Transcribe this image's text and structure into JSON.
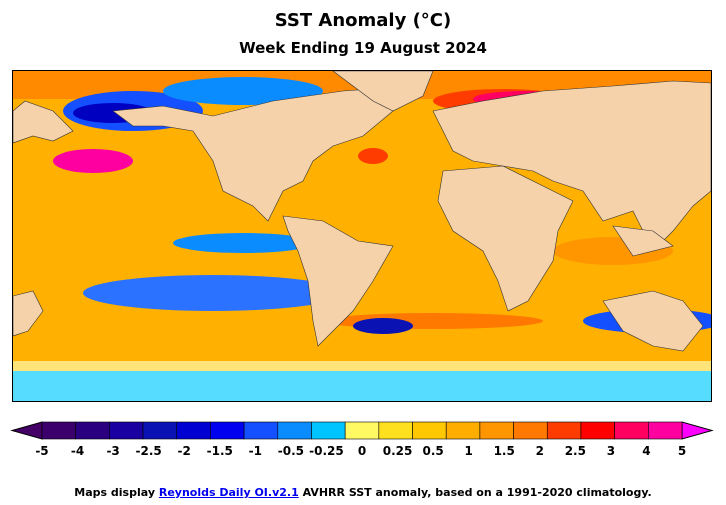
{
  "title": "SST Anomaly (°C)",
  "subtitle": "Week Ending 19 August 2024",
  "colorbar": {
    "tick_labels": [
      "-5",
      "-4",
      "-3",
      "-2.5",
      "-2",
      "-1.5",
      "-1",
      "-0.5",
      "-0.25",
      "0",
      "0.25",
      "0.5",
      "1",
      "1.5",
      "2",
      "2.5",
      "3",
      "4",
      "5"
    ],
    "colors": [
      "#3b006b",
      "#2a0080",
      "#1a00a0",
      "#0a12b4",
      "#0000d2",
      "#0000f0",
      "#1450ff",
      "#0a8cff",
      "#00c4ff",
      "#fffa64",
      "#ffe01e",
      "#ffc800",
      "#ffae00",
      "#ff9600",
      "#ff7800",
      "#ff3c00",
      "#ff0000",
      "#ff0060",
      "#ff00a0"
    ],
    "min_color": "#440066",
    "max_color": "#ff00ff"
  },
  "map": {
    "land_color": "#f5d2aa",
    "ocean_base_color": "#ffb000"
  },
  "footer": {
    "before": "Maps display ",
    "link": "Reynolds Daily OI.v2.1",
    "after": " AVHRR SST anomaly, based on a 1991-2020 climatology."
  }
}
